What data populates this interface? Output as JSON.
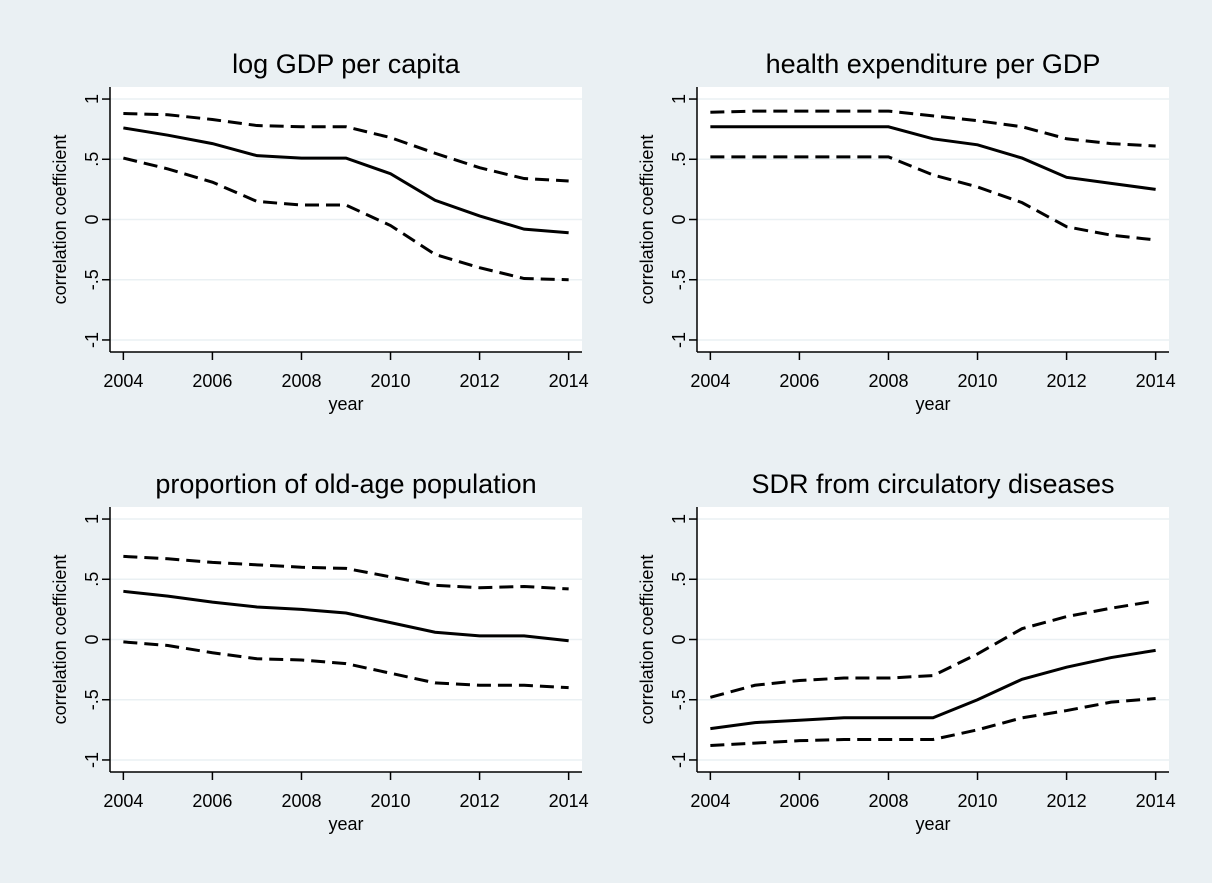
{
  "chart_data": [
    {
      "type": "line",
      "title": "log GDP per capita",
      "xlabel": "year",
      "ylabel": "correlation coefficient",
      "x": [
        2004,
        2005,
        2006,
        2007,
        2008,
        2009,
        2010,
        2011,
        2012,
        2013,
        2014
      ],
      "xlim": [
        2003.7,
        2014.3
      ],
      "xticks": [
        2004,
        2006,
        2008,
        2010,
        2012,
        2014
      ],
      "ylim": [
        -1.1,
        1.1
      ],
      "yticks": [
        {
          "value": -1,
          "label": "-1"
        },
        {
          "value": -0.5,
          "label": "-.5"
        },
        0,
        {
          "value": 0.5,
          "label": ".5"
        },
        1
      ],
      "grid": true,
      "series": [
        {
          "color": "#000000",
          "line_style": "dashed",
          "values": [
            0.88,
            0.87,
            0.83,
            0.78,
            0.77,
            0.77,
            0.68,
            0.55,
            0.43,
            0.34,
            0.32
          ]
        },
        {
          "color": "#000000",
          "line_style": "solid",
          "values": [
            0.76,
            0.7,
            0.63,
            0.53,
            0.51,
            0.51,
            0.38,
            0.16,
            0.03,
            -0.08,
            -0.11
          ]
        },
        {
          "color": "#000000",
          "line_style": "dashed",
          "values": [
            0.51,
            0.42,
            0.31,
            0.15,
            0.12,
            0.12,
            -0.05,
            -0.29,
            -0.4,
            -0.49,
            -0.5
          ]
        }
      ]
    },
    {
      "type": "line",
      "title": "health expenditure per GDP",
      "xlabel": "year",
      "ylabel": "correlation coefficient",
      "x": [
        2004,
        2005,
        2006,
        2007,
        2008,
        2009,
        2010,
        2011,
        2012,
        2013,
        2014
      ],
      "xlim": [
        2003.7,
        2014.3
      ],
      "xticks": [
        2004,
        2006,
        2008,
        2010,
        2012,
        2014
      ],
      "ylim": [
        -1.1,
        1.1
      ],
      "yticks": [
        {
          "value": -1,
          "label": "-1"
        },
        {
          "value": -0.5,
          "label": "-.5"
        },
        0,
        {
          "value": 0.5,
          "label": ".5"
        },
        1
      ],
      "grid": true,
      "series": [
        {
          "color": "#000000",
          "line_style": "dashed",
          "values": [
            0.89,
            0.9,
            0.9,
            0.9,
            0.9,
            0.86,
            0.82,
            0.77,
            0.67,
            0.63,
            0.61
          ]
        },
        {
          "color": "#000000",
          "line_style": "solid",
          "values": [
            0.77,
            0.77,
            0.77,
            0.77,
            0.77,
            0.67,
            0.62,
            0.51,
            0.35,
            0.3,
            0.25
          ]
        },
        {
          "color": "#000000",
          "line_style": "dashed",
          "values": [
            0.52,
            0.52,
            0.52,
            0.52,
            0.52,
            0.37,
            0.27,
            0.14,
            -0.06,
            -0.13,
            -0.17
          ]
        }
      ]
    },
    {
      "type": "line",
      "title": "proportion of old-age population",
      "xlabel": "year",
      "ylabel": "correlation coefficient",
      "x": [
        2004,
        2005,
        2006,
        2007,
        2008,
        2009,
        2010,
        2011,
        2012,
        2013,
        2014
      ],
      "xlim": [
        2003.7,
        2014.3
      ],
      "xticks": [
        2004,
        2006,
        2008,
        2010,
        2012,
        2014
      ],
      "ylim": [
        -1.1,
        1.1
      ],
      "yticks": [
        {
          "value": -1,
          "label": "-1"
        },
        {
          "value": -0.5,
          "label": "-.5"
        },
        0,
        {
          "value": 0.5,
          "label": ".5"
        },
        1
      ],
      "grid": true,
      "series": [
        {
          "color": "#000000",
          "line_style": "dashed",
          "values": [
            0.69,
            0.67,
            0.64,
            0.62,
            0.6,
            0.59,
            0.52,
            0.45,
            0.43,
            0.44,
            0.42
          ]
        },
        {
          "color": "#000000",
          "line_style": "solid",
          "values": [
            0.4,
            0.36,
            0.31,
            0.27,
            0.25,
            0.22,
            0.14,
            0.06,
            0.03,
            0.03,
            -0.01
          ]
        },
        {
          "color": "#000000",
          "line_style": "dashed",
          "values": [
            -0.02,
            -0.05,
            -0.11,
            -0.16,
            -0.17,
            -0.2,
            -0.28,
            -0.36,
            -0.38,
            -0.38,
            -0.4
          ]
        }
      ]
    },
    {
      "type": "line",
      "title": "SDR from circulatory diseases",
      "xlabel": "year",
      "ylabel": "correlation coefficient",
      "x": [
        2004,
        2005,
        2006,
        2007,
        2008,
        2009,
        2010,
        2011,
        2012,
        2013,
        2014
      ],
      "xlim": [
        2003.7,
        2014.3
      ],
      "xticks": [
        2004,
        2006,
        2008,
        2010,
        2012,
        2014
      ],
      "ylim": [
        -1.1,
        1.1
      ],
      "yticks": [
        {
          "value": -1,
          "label": "-1"
        },
        {
          "value": -0.5,
          "label": "-.5"
        },
        0,
        {
          "value": 0.5,
          "label": ".5"
        },
        1
      ],
      "grid": true,
      "series": [
        {
          "color": "#000000",
          "line_style": "dashed",
          "values": [
            -0.48,
            -0.38,
            -0.34,
            -0.32,
            -0.32,
            -0.3,
            -0.12,
            0.09,
            0.19,
            0.26,
            0.32
          ]
        },
        {
          "color": "#000000",
          "line_style": "solid",
          "values": [
            -0.74,
            -0.69,
            -0.67,
            -0.65,
            -0.65,
            -0.65,
            -0.5,
            -0.33,
            -0.23,
            -0.15,
            -0.09
          ]
        },
        {
          "color": "#000000",
          "line_style": "dashed",
          "values": [
            -0.88,
            -0.86,
            -0.84,
            -0.83,
            -0.83,
            -0.83,
            -0.75,
            -0.65,
            -0.59,
            -0.52,
            -0.49
          ]
        }
      ]
    }
  ]
}
